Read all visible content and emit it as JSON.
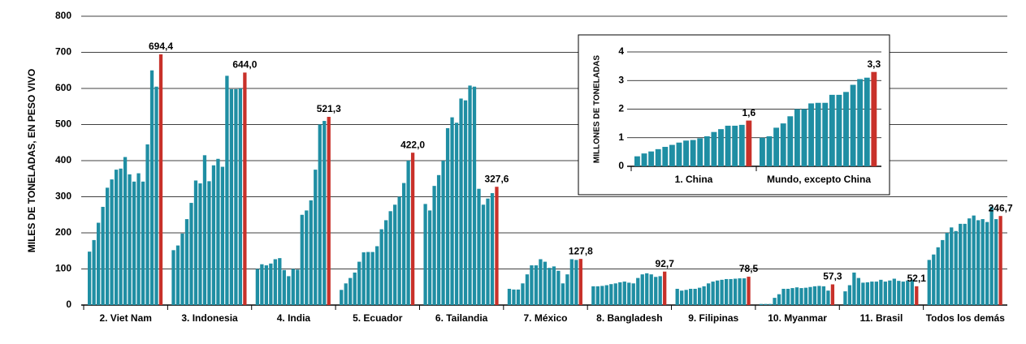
{
  "chart_data": [
    {
      "type": "bar",
      "y_label": "MILES DE TONELADAS, EN PESO VIVO",
      "ylim": [
        0,
        800
      ],
      "yticks": [
        0,
        100,
        200,
        300,
        400,
        500,
        600,
        700,
        800
      ],
      "grid": true,
      "color": "#1f8ea3",
      "highlight_color": "#c8312a",
      "groups": [
        {
          "name": "2. Viet Nam",
          "values": [
            148,
            180,
            228,
            272,
            325,
            348,
            375,
            378,
            410,
            362,
            342,
            365,
            342,
            445,
            650,
            605,
            694.4
          ],
          "value_label": "694,4"
        },
        {
          "name": "3. Indonesia",
          "values": [
            152,
            165,
            198,
            238,
            283,
            345,
            337,
            415,
            343,
            387,
            405,
            383,
            635,
            598,
            598,
            600,
            644.0
          ],
          "value_label": "644,0"
        },
        {
          "name": "4. India",
          "values": [
            100,
            113,
            110,
            115,
            127,
            130,
            97,
            80,
            100,
            98,
            250,
            262,
            290,
            375,
            500,
            510,
            521.3
          ],
          "value_label": "521,3"
        },
        {
          "name": "5. Ecuador",
          "values": [
            42,
            60,
            75,
            90,
            120,
            146,
            147,
            147,
            163,
            210,
            235,
            260,
            278,
            300,
            338,
            400,
            422.0
          ],
          "value_label": "422,0"
        },
        {
          "name": "6. Tailandia",
          "values": [
            280,
            262,
            330,
            360,
            400,
            490,
            520,
            505,
            572,
            567,
            608,
            605,
            322,
            278,
            295,
            310,
            327.6
          ],
          "value_label": "327,6"
        },
        {
          "name": "7. México",
          "values": [
            45,
            43,
            43,
            60,
            85,
            110,
            110,
            127,
            120,
            103,
            107,
            95,
            60,
            85,
            127,
            125,
            127.8
          ],
          "value_label": "127,8"
        },
        {
          "name": "8. Bangladesh",
          "values": [
            52,
            52,
            53,
            55,
            58,
            60,
            63,
            65,
            62,
            60,
            75,
            85,
            88,
            85,
            78,
            80,
            92.7
          ],
          "value_label": "92,7"
        },
        {
          "name": "9. Filipinas",
          "values": [
            45,
            40,
            42,
            45,
            45,
            48,
            52,
            60,
            65,
            68,
            70,
            72,
            72,
            73,
            74,
            74,
            78.5
          ],
          "value_label": "78,5"
        },
        {
          "name": "10. Myanmar",
          "values": [
            3,
            3,
            3,
            20,
            30,
            45,
            45,
            47,
            49,
            47,
            48,
            50,
            52,
            53,
            52,
            40,
            57.3
          ],
          "value_label": "57,3"
        },
        {
          "name": "11. Brasil",
          "values": [
            38,
            55,
            90,
            75,
            62,
            63,
            65,
            65,
            70,
            65,
            68,
            73,
            67,
            65,
            68,
            70,
            52.1
          ],
          "value_label": "52,1"
        },
        {
          "name": "Todos los demás",
          "values": [
            125,
            140,
            160,
            180,
            200,
            215,
            205,
            225,
            225,
            240,
            248,
            235,
            238,
            230,
            272,
            238,
            246.7
          ],
          "value_label": "246,7"
        }
      ]
    },
    {
      "type": "bar",
      "y_label": "MILLONES DE TONELADAS",
      "ylim": [
        0,
        4
      ],
      "yticks": [
        0,
        1,
        2,
        3,
        4
      ],
      "grid": true,
      "color": "#1f8ea3",
      "highlight_color": "#c8312a",
      "groups": [
        {
          "name": "1. China",
          "values": [
            0.35,
            0.45,
            0.52,
            0.6,
            0.68,
            0.75,
            0.83,
            0.9,
            0.92,
            0.98,
            1.05,
            1.2,
            1.3,
            1.42,
            1.42,
            1.45,
            1.6
          ],
          "value_label": "1,6"
        },
        {
          "name": "Mundo, excepto China",
          "values": [
            1.0,
            1.05,
            1.35,
            1.5,
            1.75,
            2.0,
            2.0,
            2.2,
            2.22,
            2.22,
            2.5,
            2.5,
            2.6,
            2.85,
            3.05,
            3.1,
            3.3
          ],
          "value_label": "3,3"
        }
      ]
    }
  ]
}
